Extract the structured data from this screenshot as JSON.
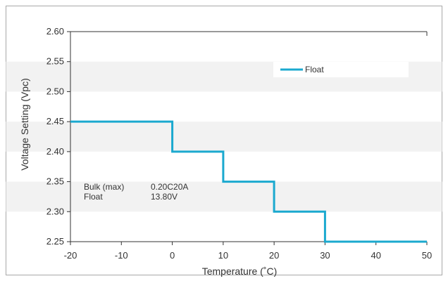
{
  "chart_data": {
    "type": "line",
    "xlabel": "Temperature (˚C)",
    "ylabel": "Voltage Setting (Vpc)",
    "xlim": [
      -20,
      50
    ],
    "ylim": [
      2.25,
      2.6
    ],
    "x_ticks": [
      "-20",
      "-10",
      "0",
      "10",
      "20",
      "30",
      "40",
      "50"
    ],
    "y_ticks": [
      "2.60",
      "2.55",
      "2.50",
      "2.45",
      "2.40",
      "2.35",
      "2.30",
      "2.25"
    ],
    "series": [
      {
        "name": "Float",
        "color": "#1ba9cf",
        "step": true,
        "points": [
          [
            -20,
            2.45
          ],
          [
            0,
            2.45
          ],
          [
            0,
            2.4
          ],
          [
            10,
            2.4
          ],
          [
            10,
            2.35
          ],
          [
            20,
            2.35
          ],
          [
            20,
            2.3
          ],
          [
            30,
            2.3
          ],
          [
            30,
            2.25
          ],
          [
            50,
            2.25
          ]
        ]
      }
    ],
    "legend_position": "top-right",
    "grid": "alternating horizontal bands",
    "band_color": "#f2f2f2",
    "annotation": {
      "rows": [
        {
          "label": "Bulk (max)",
          "value": "0.20C20A"
        },
        {
          "label": "Float",
          "value": "13.80V"
        }
      ]
    }
  }
}
